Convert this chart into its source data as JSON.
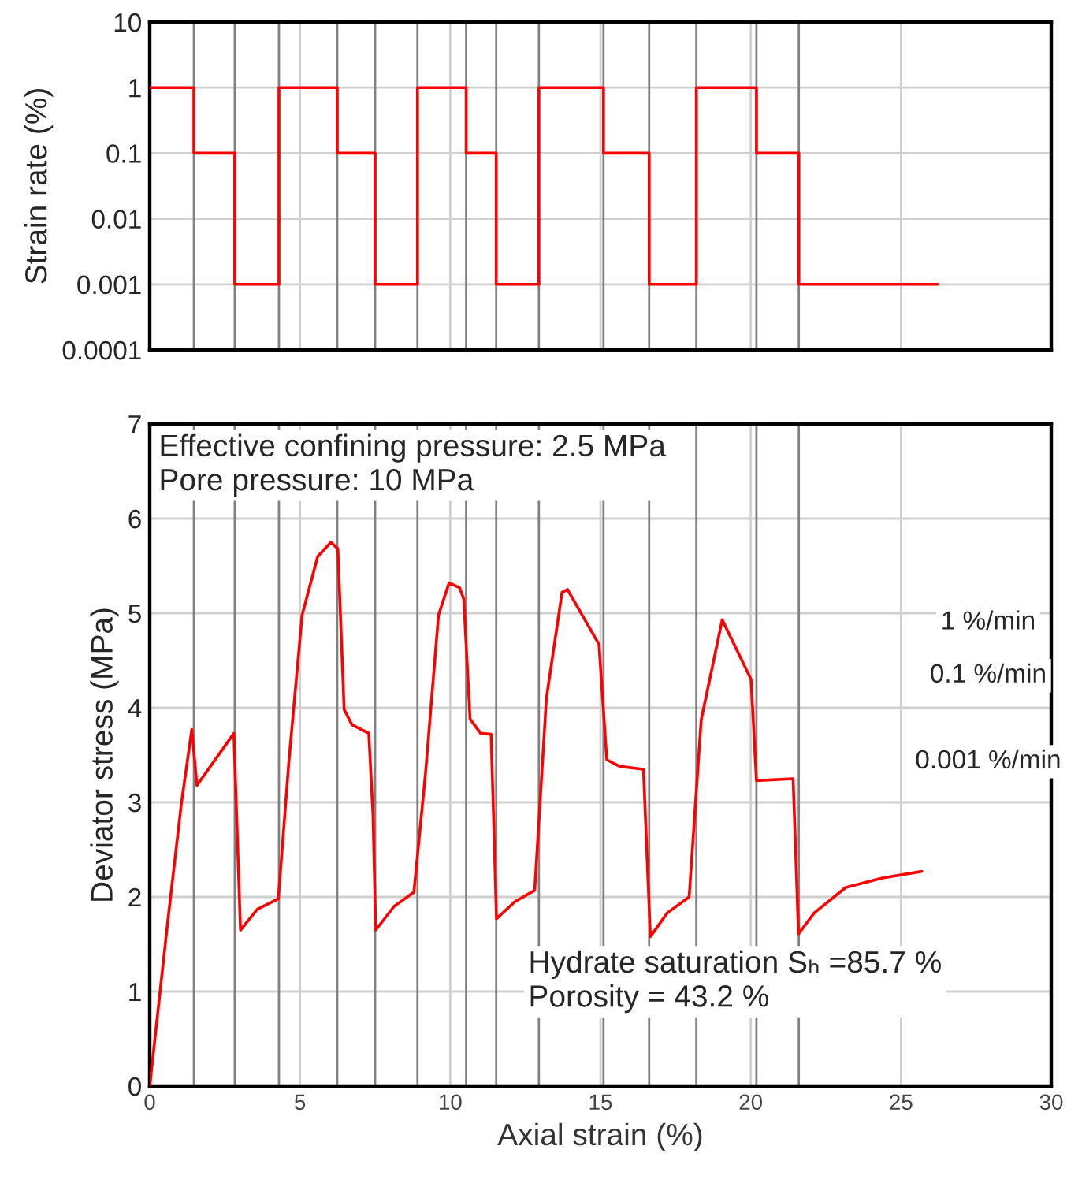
{
  "chart_data": [
    {
      "type": "step",
      "ylabel": "Strain rate (%)",
      "log": "y",
      "xlim": [
        0,
        30
      ],
      "xticks": [
        0,
        5,
        10,
        15,
        20,
        25,
        30
      ],
      "ylim": [
        0.0001,
        10
      ],
      "yticks": [
        0.0001,
        0.001,
        0.01,
        0.1,
        1,
        10
      ],
      "tick_labels": "y",
      "grid": true,
      "series": [
        {
          "color": "#ff0000",
          "x": [
            0,
            1.47,
            2.83,
            4.3,
            6.24,
            7.5,
            8.91,
            10.53,
            11.53,
            12.95,
            15.1,
            16.62,
            18.19,
            20.19,
            21.6,
            26.22
          ],
          "values": [
            1,
            0.1,
            0.001,
            1,
            0.1,
            0.001,
            1,
            0.1,
            0.001,
            1,
            0.1,
            0.001,
            1,
            0.1,
            0.001,
            0.001
          ]
        }
      ],
      "ref_lines": [
        {
          "axis": "x",
          "value": 1.47,
          "color": "#808080"
        },
        {
          "axis": "x",
          "value": 2.83,
          "color": "#808080"
        },
        {
          "axis": "x",
          "value": 4.3,
          "color": "#808080"
        },
        {
          "axis": "x",
          "value": 6.24,
          "color": "#808080"
        },
        {
          "axis": "x",
          "value": 7.5,
          "color": "#808080"
        },
        {
          "axis": "x",
          "value": 8.91,
          "color": "#808080"
        },
        {
          "axis": "x",
          "value": 10.53,
          "color": "#808080"
        },
        {
          "axis": "x",
          "value": 11.53,
          "color": "#808080"
        },
        {
          "axis": "x",
          "value": 12.95,
          "color": "#808080"
        },
        {
          "axis": "x",
          "value": 15.1,
          "color": "#808080"
        },
        {
          "axis": "x",
          "value": 16.62,
          "color": "#808080"
        },
        {
          "axis": "x",
          "value": 18.19,
          "color": "#808080"
        },
        {
          "axis": "x",
          "value": 20.19,
          "color": "#808080"
        },
        {
          "axis": "x",
          "value": 21.6,
          "color": "#808080"
        }
      ]
    },
    {
      "type": "line",
      "xlabel": "Axial strain (%)",
      "ylabel": "Deviator stress (MPa)",
      "xlim": [
        0,
        30
      ],
      "xticks": [
        0,
        5,
        10,
        15,
        20,
        25,
        30
      ],
      "ylim": [
        0,
        7
      ],
      "yticks": [
        0,
        1,
        2,
        3,
        4,
        5,
        6,
        7
      ],
      "grid": true,
      "series": [
        {
          "color": "#ff0000",
          "x": [
            0,
            0.61,
            1.05,
            1.4,
            1.57,
            2.8,
            3.02,
            3.58,
            4.28,
            4.63,
            5.07,
            5.59,
            6.03,
            6.26,
            6.47,
            6.73,
            7.29,
            7.43,
            7.52,
            8.13,
            8.79,
            9.18,
            9.61,
            9.96,
            10.31,
            10.45,
            10.66,
            11.01,
            11.36,
            11.54,
            12.15,
            12.81,
            13.2,
            13.72,
            13.9,
            14.95,
            15.21,
            15.64,
            16.43,
            16.66,
            17.22,
            17.95,
            18.35,
            19.05,
            20.01,
            20.19,
            21.41,
            21.59,
            22.11,
            23.16,
            24.38,
            25.69
          ],
          "values": [
            0,
            1.77,
            2.98,
            3.77,
            3.18,
            3.73,
            1.65,
            1.87,
            1.98,
            3.43,
            4.98,
            5.6,
            5.75,
            5.68,
            3.98,
            3.82,
            3.73,
            2.87,
            1.65,
            1.9,
            2.05,
            3.32,
            4.98,
            5.32,
            5.27,
            5.15,
            3.88,
            3.73,
            3.72,
            1.77,
            1.95,
            2.07,
            4.1,
            5.22,
            5.25,
            4.67,
            3.45,
            3.38,
            3.35,
            1.58,
            1.83,
            2.0,
            3.87,
            4.93,
            4.3,
            3.23,
            3.25,
            1.61,
            1.83,
            2.1,
            2.2,
            2.27
          ]
        }
      ],
      "ref_lines": [
        {
          "axis": "x",
          "value": 1.47,
          "color": "#808080"
        },
        {
          "axis": "x",
          "value": 2.83,
          "color": "#808080"
        },
        {
          "axis": "x",
          "value": 4.3,
          "color": "#808080"
        },
        {
          "axis": "x",
          "value": 6.24,
          "color": "#808080"
        },
        {
          "axis": "x",
          "value": 7.5,
          "color": "#808080"
        },
        {
          "axis": "x",
          "value": 8.91,
          "color": "#808080"
        },
        {
          "axis": "x",
          "value": 10.53,
          "color": "#808080"
        },
        {
          "axis": "x",
          "value": 11.53,
          "color": "#808080"
        },
        {
          "axis": "x",
          "value": 12.95,
          "color": "#808080"
        },
        {
          "axis": "x",
          "value": 15.1,
          "color": "#808080"
        },
        {
          "axis": "x",
          "value": 16.62,
          "color": "#808080"
        },
        {
          "axis": "x",
          "value": 18.19,
          "color": "#808080"
        },
        {
          "axis": "x",
          "value": 20.19,
          "color": "#808080"
        },
        {
          "axis": "x",
          "value": 21.6,
          "color": "#808080"
        }
      ],
      "annotations": [
        "Effective confining pressure: 2.5 MPa\nPore pressure: 10 MPa",
        "1 %/min",
        "0.1 %/min",
        "0.001 %/min",
        "Hydrate saturation Sₕ =85.7 %\nPorosity = 43.2 %"
      ]
    }
  ]
}
